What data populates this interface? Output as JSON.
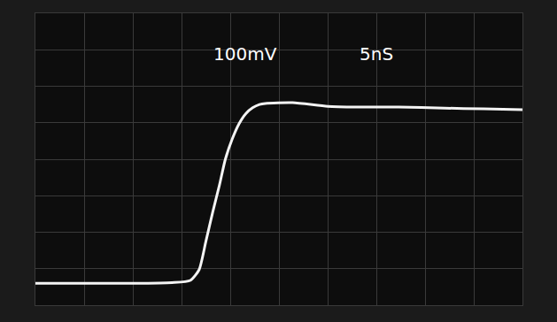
{
  "chart_data": {
    "type": "line",
    "annotations": [
      "100mV",
      "5nS"
    ],
    "x": [
      -0.4,
      5,
      10,
      14,
      15.9,
      16.8,
      17.5,
      18.2,
      18.9,
      19.5,
      20.2,
      20.9,
      21.6,
      22.3,
      23.0,
      23.6,
      26.4,
      30,
      33,
      37.3,
      42,
      46,
      50
    ],
    "values": [
      -340,
      -340,
      -340,
      -338,
      -332,
      -303,
      -225,
      -145,
      -70,
      0,
      55,
      97,
      125,
      141,
      150,
      153,
      155,
      145,
      143,
      143,
      140,
      138,
      136
    ],
    "color": "#f4f4f4",
    "xlim": [
      0,
      50
    ],
    "xticks": [
      0,
      5,
      10,
      15,
      20,
      25,
      30,
      35,
      40,
      45,
      50
    ],
    "ylim": [
      -400,
      400
    ],
    "yticks": [
      -400,
      -300,
      -200,
      -100,
      0,
      100,
      200,
      300,
      400
    ],
    "grid": true,
    "tick_labels": false
  }
}
